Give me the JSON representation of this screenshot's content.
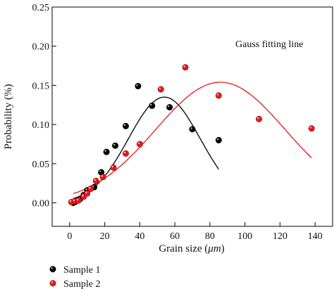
{
  "chart_data": {
    "type": "scatter",
    "xlabel_prefix": "Grain size (",
    "xlabel_unit": "μm",
    "xlabel_suffix": ")",
    "ylabel": "Probability (%)",
    "xlim": [
      -10,
      150
    ],
    "ylim": [
      -0.03,
      0.25
    ],
    "xticks": [
      0,
      20,
      40,
      60,
      80,
      100,
      120,
      140
    ],
    "yticks": [
      0.0,
      0.05,
      0.1,
      0.15,
      0.2,
      0.25
    ],
    "annotation": "Gauss fitting line",
    "legend_position": "bottom-left",
    "series": [
      {
        "name": "Sample 1",
        "color": "#000000",
        "x": [
          2,
          3,
          4,
          6,
          8,
          10,
          14,
          18,
          21,
          26,
          32,
          39,
          47,
          57,
          70,
          85
        ],
        "y": [
          0.0,
          0.001,
          0.003,
          0.005,
          0.01,
          0.016,
          0.02,
          0.039,
          0.065,
          0.073,
          0.098,
          0.149,
          0.124,
          0.122,
          0.094,
          0.08
        ],
        "fit": {
          "amplitude": 0.135,
          "center": 54,
          "sigma": 20.5,
          "x_range": [
            2,
            85
          ]
        }
      },
      {
        "name": "Sample 2",
        "color": "#e31a1c",
        "x": [
          1,
          3,
          5,
          8,
          10,
          12,
          15,
          19,
          25,
          32,
          40,
          52,
          66,
          85,
          108,
          138
        ],
        "y": [
          0.001,
          0.002,
          0.003,
          0.008,
          0.012,
          0.018,
          0.028,
          0.033,
          0.045,
          0.063,
          0.075,
          0.145,
          0.173,
          0.137,
          0.107,
          0.095
        ],
        "fit": {
          "amplitude": 0.154,
          "center": 86,
          "sigma": 37,
          "x_range": [
            2,
            138
          ]
        }
      }
    ]
  }
}
